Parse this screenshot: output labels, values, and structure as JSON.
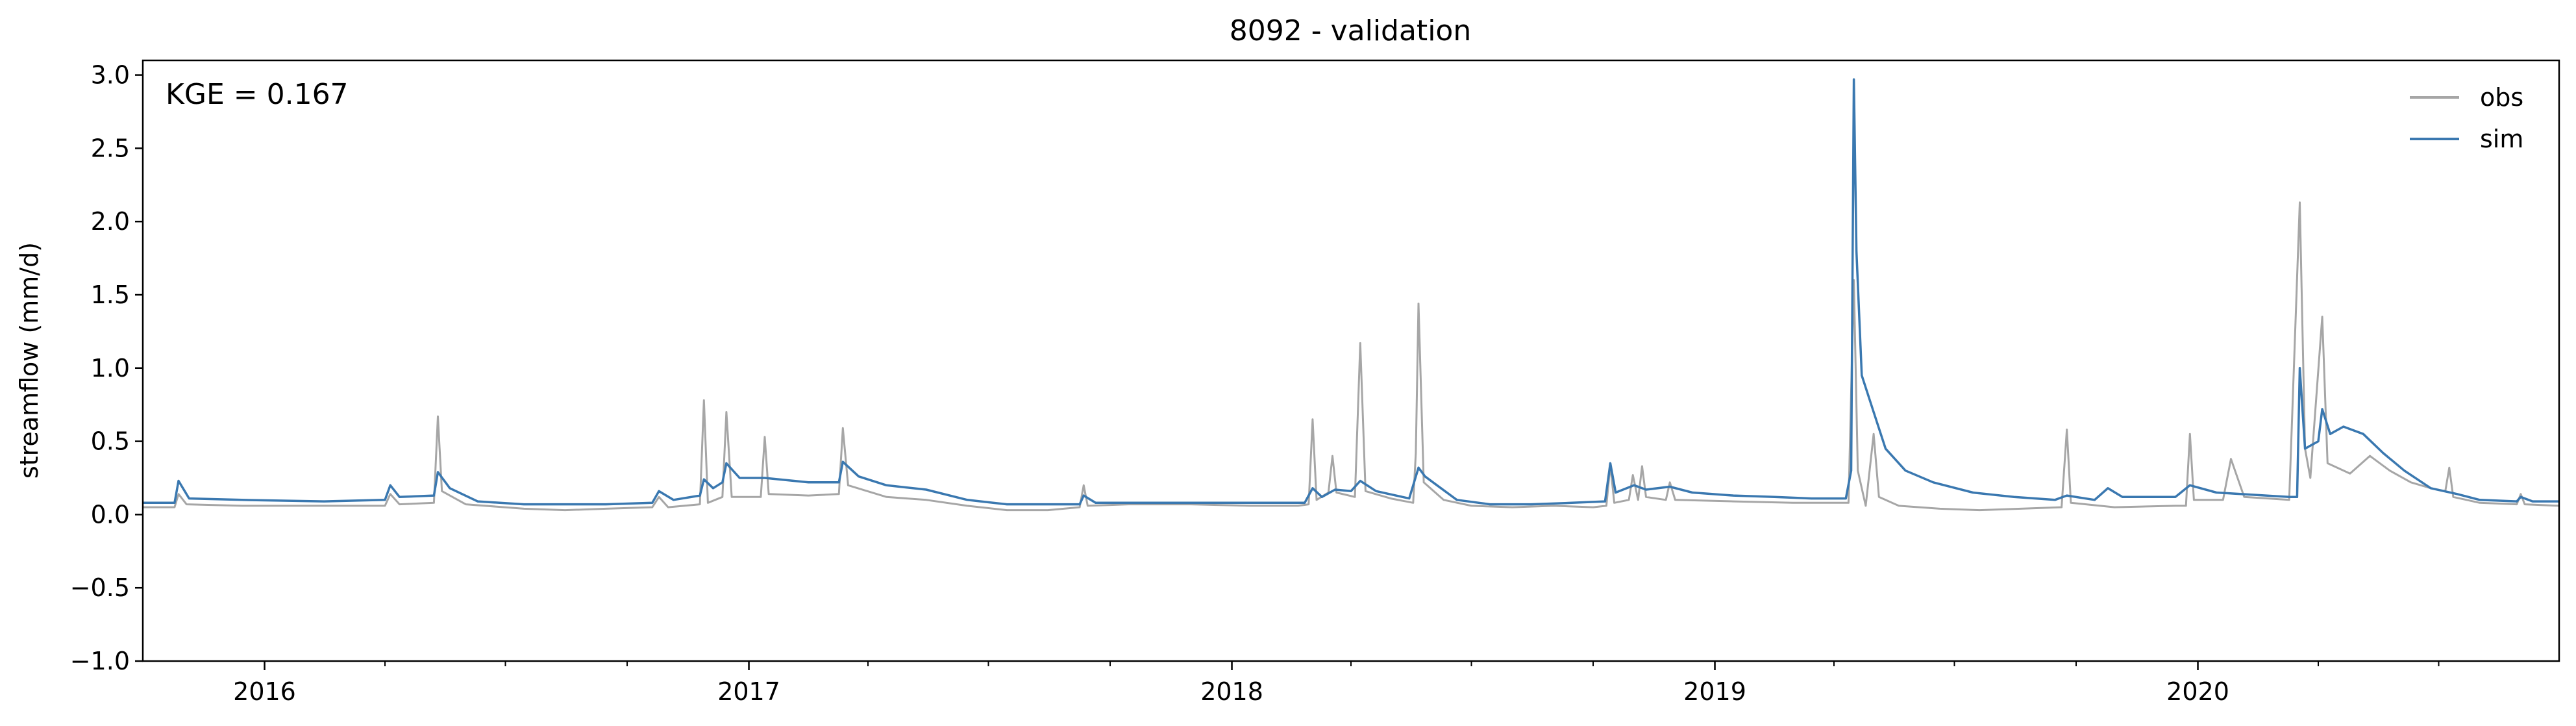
{
  "chart_data": {
    "type": "line",
    "title": "8092 - validation",
    "xlabel": "",
    "ylabel": "streamflow (mm/d)",
    "annotation": "KGE = 0.167",
    "legend_position": "top-right",
    "grid": false,
    "xlim": [
      "2015-10-01",
      "2020-09-30"
    ],
    "ylim": [
      -1.0,
      3.1
    ],
    "x_ticks": [
      {
        "date": "2016-01-01",
        "label": "2016"
      },
      {
        "date": "2017-01-01",
        "label": "2017"
      },
      {
        "date": "2018-01-01",
        "label": "2018"
      },
      {
        "date": "2019-01-01",
        "label": "2019"
      },
      {
        "date": "2020-01-01",
        "label": "2020"
      }
    ],
    "y_ticks": [
      {
        "value": -1.0,
        "label": "−1.0"
      },
      {
        "value": -0.5,
        "label": "−0.5"
      },
      {
        "value": 0.0,
        "label": "0.0"
      },
      {
        "value": 0.5,
        "label": "0.5"
      },
      {
        "value": 1.0,
        "label": "1.0"
      },
      {
        "value": 1.5,
        "label": "1.5"
      },
      {
        "value": 2.0,
        "label": "2.0"
      },
      {
        "value": 2.5,
        "label": "2.5"
      },
      {
        "value": 3.0,
        "label": "3.0"
      }
    ],
    "series": [
      {
        "name": "obs",
        "color": "#a6a6a6",
        "points": [
          [
            "2015-10-01",
            0.05
          ],
          [
            "2015-10-25",
            0.05
          ],
          [
            "2015-10-28",
            0.14
          ],
          [
            "2015-11-03",
            0.07
          ],
          [
            "2015-12-15",
            0.06
          ],
          [
            "2016-02-15",
            0.06
          ],
          [
            "2016-04-01",
            0.06
          ],
          [
            "2016-04-05",
            0.14
          ],
          [
            "2016-04-12",
            0.07
          ],
          [
            "2016-05-08",
            0.08
          ],
          [
            "2016-05-11",
            0.67
          ],
          [
            "2016-05-14",
            0.16
          ],
          [
            "2016-06-01",
            0.07
          ],
          [
            "2016-07-15",
            0.04
          ],
          [
            "2016-08-15",
            0.03
          ],
          [
            "2016-09-15",
            0.04
          ],
          [
            "2016-10-20",
            0.05
          ],
          [
            "2016-10-25",
            0.12
          ],
          [
            "2016-11-01",
            0.05
          ],
          [
            "2016-11-25",
            0.07
          ],
          [
            "2016-11-28",
            0.78
          ],
          [
            "2016-12-01",
            0.08
          ],
          [
            "2016-12-12",
            0.12
          ],
          [
            "2016-12-15",
            0.7
          ],
          [
            "2016-12-19",
            0.12
          ],
          [
            "2017-01-10",
            0.12
          ],
          [
            "2017-01-13",
            0.53
          ],
          [
            "2017-01-16",
            0.14
          ],
          [
            "2017-02-15",
            0.13
          ],
          [
            "2017-03-10",
            0.14
          ],
          [
            "2017-03-13",
            0.59
          ],
          [
            "2017-03-17",
            0.2
          ],
          [
            "2017-04-15",
            0.12
          ],
          [
            "2017-05-15",
            0.1
          ],
          [
            "2017-06-15",
            0.06
          ],
          [
            "2017-07-15",
            0.03
          ],
          [
            "2017-08-15",
            0.03
          ],
          [
            "2017-09-08",
            0.05
          ],
          [
            "2017-09-11",
            0.2
          ],
          [
            "2017-09-14",
            0.06
          ],
          [
            "2017-10-15",
            0.07
          ],
          [
            "2017-12-01",
            0.07
          ],
          [
            "2018-01-15",
            0.06
          ],
          [
            "2018-02-20",
            0.06
          ],
          [
            "2018-02-28",
            0.07
          ],
          [
            "2018-03-03",
            0.65
          ],
          [
            "2018-03-06",
            0.1
          ],
          [
            "2018-03-15",
            0.15
          ],
          [
            "2018-03-18",
            0.4
          ],
          [
            "2018-03-21",
            0.15
          ],
          [
            "2018-04-04",
            0.12
          ],
          [
            "2018-04-08",
            1.17
          ],
          [
            "2018-04-12",
            0.16
          ],
          [
            "2018-05-01",
            0.11
          ],
          [
            "2018-05-18",
            0.08
          ],
          [
            "2018-05-20",
            0.42
          ],
          [
            "2018-05-22",
            1.44
          ],
          [
            "2018-05-26",
            0.22
          ],
          [
            "2018-06-10",
            0.1
          ],
          [
            "2018-07-01",
            0.06
          ],
          [
            "2018-08-01",
            0.05
          ],
          [
            "2018-09-01",
            0.06
          ],
          [
            "2018-10-01",
            0.05
          ],
          [
            "2018-10-11",
            0.06
          ],
          [
            "2018-10-14",
            0.34
          ],
          [
            "2018-10-17",
            0.08
          ],
          [
            "2018-10-28",
            0.1
          ],
          [
            "2018-10-31",
            0.27
          ],
          [
            "2018-11-04",
            0.1
          ],
          [
            "2018-11-07",
            0.33
          ],
          [
            "2018-11-10",
            0.12
          ],
          [
            "2018-11-25",
            0.1
          ],
          [
            "2018-11-28",
            0.22
          ],
          [
            "2018-12-02",
            0.1
          ],
          [
            "2019-01-15",
            0.09
          ],
          [
            "2019-03-01",
            0.08
          ],
          [
            "2019-04-12",
            0.08
          ],
          [
            "2019-04-16",
            1.6
          ],
          [
            "2019-04-19",
            0.3
          ],
          [
            "2019-04-25",
            0.06
          ],
          [
            "2019-05-01",
            0.55
          ],
          [
            "2019-05-05",
            0.12
          ],
          [
            "2019-05-20",
            0.06
          ],
          [
            "2019-06-20",
            0.04
          ],
          [
            "2019-07-20",
            0.03
          ],
          [
            "2019-08-20",
            0.04
          ],
          [
            "2019-09-20",
            0.05
          ],
          [
            "2019-09-24",
            0.58
          ],
          [
            "2019-09-27",
            0.08
          ],
          [
            "2019-10-30",
            0.05
          ],
          [
            "2019-12-15",
            0.06
          ],
          [
            "2019-12-23",
            0.06
          ],
          [
            "2019-12-26",
            0.55
          ],
          [
            "2019-12-29",
            0.1
          ],
          [
            "2020-01-20",
            0.1
          ],
          [
            "2020-01-26",
            0.38
          ],
          [
            "2020-02-05",
            0.12
          ],
          [
            "2020-03-10",
            0.1
          ],
          [
            "2020-03-18",
            2.13
          ],
          [
            "2020-03-22",
            0.45
          ],
          [
            "2020-03-26",
            0.25
          ],
          [
            "2020-04-04",
            1.35
          ],
          [
            "2020-04-08",
            0.35
          ],
          [
            "2020-04-25",
            0.28
          ],
          [
            "2020-05-10",
            0.4
          ],
          [
            "2020-05-25",
            0.3
          ],
          [
            "2020-06-10",
            0.22
          ],
          [
            "2020-06-25",
            0.18
          ],
          [
            "2020-07-06",
            0.16
          ],
          [
            "2020-07-09",
            0.32
          ],
          [
            "2020-07-12",
            0.12
          ],
          [
            "2020-08-01",
            0.08
          ],
          [
            "2020-08-29",
            0.07
          ],
          [
            "2020-09-01",
            0.14
          ],
          [
            "2020-09-04",
            0.07
          ],
          [
            "2020-09-30",
            0.06
          ]
        ]
      },
      {
        "name": "sim",
        "color": "#3a78b0",
        "points": [
          [
            "2015-10-01",
            0.08
          ],
          [
            "2015-10-25",
            0.08
          ],
          [
            "2015-10-28",
            0.23
          ],
          [
            "2015-11-05",
            0.11
          ],
          [
            "2015-12-15",
            0.1
          ],
          [
            "2016-02-15",
            0.09
          ],
          [
            "2016-04-01",
            0.1
          ],
          [
            "2016-04-05",
            0.2
          ],
          [
            "2016-04-12",
            0.12
          ],
          [
            "2016-05-08",
            0.13
          ],
          [
            "2016-05-11",
            0.29
          ],
          [
            "2016-05-20",
            0.18
          ],
          [
            "2016-06-10",
            0.09
          ],
          [
            "2016-07-15",
            0.07
          ],
          [
            "2016-08-15",
            0.07
          ],
          [
            "2016-09-15",
            0.07
          ],
          [
            "2016-10-20",
            0.08
          ],
          [
            "2016-10-25",
            0.16
          ],
          [
            "2016-11-05",
            0.1
          ],
          [
            "2016-11-25",
            0.13
          ],
          [
            "2016-11-28",
            0.24
          ],
          [
            "2016-12-05",
            0.18
          ],
          [
            "2016-12-12",
            0.22
          ],
          [
            "2016-12-15",
            0.35
          ],
          [
            "2016-12-25",
            0.25
          ],
          [
            "2017-01-13",
            0.25
          ],
          [
            "2017-02-15",
            0.22
          ],
          [
            "2017-03-10",
            0.22
          ],
          [
            "2017-03-13",
            0.36
          ],
          [
            "2017-03-25",
            0.26
          ],
          [
            "2017-04-15",
            0.2
          ],
          [
            "2017-05-15",
            0.17
          ],
          [
            "2017-06-15",
            0.1
          ],
          [
            "2017-07-15",
            0.07
          ],
          [
            "2017-08-15",
            0.07
          ],
          [
            "2017-09-08",
            0.07
          ],
          [
            "2017-09-11",
            0.13
          ],
          [
            "2017-09-20",
            0.08
          ],
          [
            "2017-10-15",
            0.08
          ],
          [
            "2017-12-01",
            0.08
          ],
          [
            "2018-01-15",
            0.08
          ],
          [
            "2018-02-25",
            0.08
          ],
          [
            "2018-03-03",
            0.18
          ],
          [
            "2018-03-10",
            0.12
          ],
          [
            "2018-03-20",
            0.17
          ],
          [
            "2018-04-01",
            0.16
          ],
          [
            "2018-04-08",
            0.23
          ],
          [
            "2018-04-20",
            0.16
          ],
          [
            "2018-05-15",
            0.11
          ],
          [
            "2018-05-22",
            0.32
          ],
          [
            "2018-05-27",
            0.26
          ],
          [
            "2018-06-05",
            0.2
          ],
          [
            "2018-06-20",
            0.1
          ],
          [
            "2018-07-15",
            0.07
          ],
          [
            "2018-08-15",
            0.07
          ],
          [
            "2018-09-15",
            0.08
          ],
          [
            "2018-10-10",
            0.09
          ],
          [
            "2018-10-14",
            0.35
          ],
          [
            "2018-10-18",
            0.15
          ],
          [
            "2018-11-01",
            0.2
          ],
          [
            "2018-11-10",
            0.17
          ],
          [
            "2018-11-28",
            0.19
          ],
          [
            "2018-12-15",
            0.15
          ],
          [
            "2019-01-15",
            0.13
          ],
          [
            "2019-02-15",
            0.12
          ],
          [
            "2019-03-15",
            0.11
          ],
          [
            "2019-04-10",
            0.11
          ],
          [
            "2019-04-14",
            0.3
          ],
          [
            "2019-04-16",
            2.97
          ],
          [
            "2019-04-18",
            1.8
          ],
          [
            "2019-04-22",
            0.95
          ],
          [
            "2019-05-01",
            0.7
          ],
          [
            "2019-05-10",
            0.45
          ],
          [
            "2019-05-25",
            0.3
          ],
          [
            "2019-06-15",
            0.22
          ],
          [
            "2019-07-15",
            0.15
          ],
          [
            "2019-08-15",
            0.12
          ],
          [
            "2019-09-15",
            0.1
          ],
          [
            "2019-09-24",
            0.13
          ],
          [
            "2019-10-15",
            0.1
          ],
          [
            "2019-10-25",
            0.18
          ],
          [
            "2019-11-05",
            0.12
          ],
          [
            "2019-12-15",
            0.12
          ],
          [
            "2019-12-26",
            0.2
          ],
          [
            "2020-01-15",
            0.15
          ],
          [
            "2020-03-10",
            0.12
          ],
          [
            "2020-03-16",
            0.12
          ],
          [
            "2020-03-18",
            1.0
          ],
          [
            "2020-03-22",
            0.45
          ],
          [
            "2020-04-01",
            0.5
          ],
          [
            "2020-04-04",
            0.72
          ],
          [
            "2020-04-10",
            0.55
          ],
          [
            "2020-04-20",
            0.6
          ],
          [
            "2020-05-05",
            0.55
          ],
          [
            "2020-05-20",
            0.42
          ],
          [
            "2020-06-05",
            0.3
          ],
          [
            "2020-06-25",
            0.18
          ],
          [
            "2020-07-15",
            0.14
          ],
          [
            "2020-08-01",
            0.1
          ],
          [
            "2020-08-29",
            0.09
          ],
          [
            "2020-09-01",
            0.12
          ],
          [
            "2020-09-10",
            0.09
          ],
          [
            "2020-09-30",
            0.09
          ]
        ]
      }
    ]
  }
}
